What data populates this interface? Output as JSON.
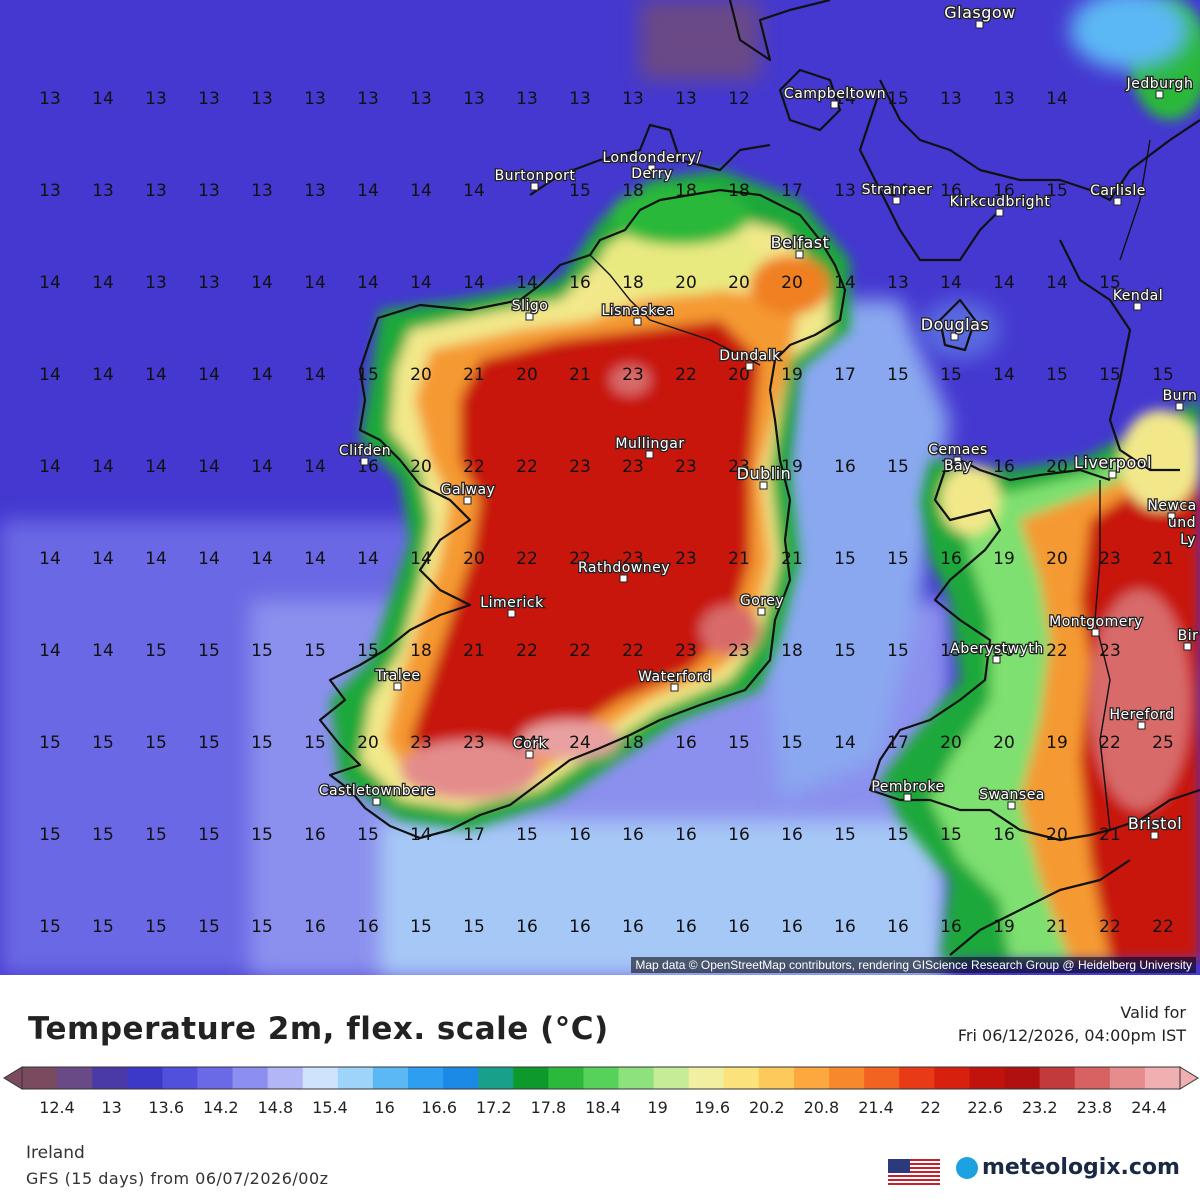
{
  "map": {
    "grid_rows": [
      {
        "values": [
          "13",
          "14",
          "13",
          "13",
          "13",
          "13",
          "13",
          "13",
          "13",
          "13",
          "13",
          "13",
          "13",
          "12",
          "",
          "14",
          "15",
          "13",
          "13",
          "14"
        ]
      },
      {
        "values": [
          "13",
          "13",
          "13",
          "13",
          "13",
          "13",
          "14",
          "14",
          "14",
          "",
          "15",
          "18",
          "18",
          "18",
          "17",
          "13",
          "14",
          "16",
          "16",
          "15"
        ]
      },
      {
        "values": [
          "14",
          "14",
          "13",
          "13",
          "14",
          "14",
          "14",
          "14",
          "14",
          "14",
          "16",
          "18",
          "20",
          "20",
          "20",
          "14",
          "13",
          "14",
          "14",
          "14",
          "15"
        ]
      },
      {
        "values": [
          "14",
          "14",
          "14",
          "14",
          "14",
          "14",
          "15",
          "20",
          "21",
          "20",
          "21",
          "23",
          "22",
          "20",
          "19",
          "17",
          "15",
          "15",
          "14",
          "15",
          "15",
          "15"
        ]
      },
      {
        "values": [
          "14",
          "14",
          "14",
          "14",
          "14",
          "14",
          "16",
          "20",
          "22",
          "22",
          "23",
          "23",
          "23",
          "23",
          "19",
          "16",
          "15",
          "17",
          "16",
          "20"
        ]
      },
      {
        "values": [
          "14",
          "14",
          "14",
          "14",
          "14",
          "14",
          "14",
          "14",
          "20",
          "22",
          "22",
          "23",
          "23",
          "21",
          "21",
          "15",
          "15",
          "16",
          "19",
          "20",
          "23",
          "21"
        ]
      },
      {
        "values": [
          "14",
          "14",
          "15",
          "15",
          "15",
          "15",
          "15",
          "18",
          "21",
          "22",
          "22",
          "22",
          "23",
          "23",
          "18",
          "15",
          "15",
          "15",
          "20",
          "22",
          "23"
        ]
      },
      {
        "values": [
          "15",
          "15",
          "15",
          "15",
          "15",
          "15",
          "20",
          "23",
          "23",
          "24",
          "24",
          "18",
          "16",
          "15",
          "15",
          "14",
          "17",
          "20",
          "20",
          "19",
          "22",
          "25"
        ]
      },
      {
        "values": [
          "15",
          "15",
          "15",
          "15",
          "15",
          "16",
          "15",
          "14",
          "17",
          "15",
          "16",
          "16",
          "16",
          "16",
          "16",
          "15",
          "15",
          "15",
          "16",
          "20",
          "21"
        ]
      },
      {
        "values": [
          "15",
          "15",
          "15",
          "15",
          "15",
          "16",
          "16",
          "15",
          "15",
          "16",
          "16",
          "16",
          "16",
          "16",
          "16",
          "16",
          "16",
          "16",
          "19",
          "21",
          "22",
          "22"
        ]
      }
    ],
    "cities": [
      {
        "name": "Glasgow"
      },
      {
        "name": "Campbeltown"
      },
      {
        "name": "Jedburgh"
      },
      {
        "name": "Londonderry/"
      },
      {
        "name": "Derry"
      },
      {
        "name": "Burtonport"
      },
      {
        "name": "Stranraer"
      },
      {
        "name": "Kirkcudbright"
      },
      {
        "name": "Carlisle"
      },
      {
        "name": "Belfast"
      },
      {
        "name": "Sligo"
      },
      {
        "name": "Lisnaskea"
      },
      {
        "name": "Kendal"
      },
      {
        "name": "Douglas"
      },
      {
        "name": "Dundalk"
      },
      {
        "name": "Burn"
      },
      {
        "name": "Mullingar"
      },
      {
        "name": "Clifden"
      },
      {
        "name": "Cemaes"
      },
      {
        "name": "Bay"
      },
      {
        "name": "Liverpool"
      },
      {
        "name": "Dublin"
      },
      {
        "name": "Galway"
      },
      {
        "name": "Newca"
      },
      {
        "name": "und"
      },
      {
        "name": "Ly"
      },
      {
        "name": "Rathdowney"
      },
      {
        "name": "Gorey"
      },
      {
        "name": "Limerick"
      },
      {
        "name": "Montgomery"
      },
      {
        "name": "Bir"
      },
      {
        "name": "Aberystwyth"
      },
      {
        "name": "Tralee"
      },
      {
        "name": "Waterford"
      },
      {
        "name": "Hereford"
      },
      {
        "name": "Cork"
      },
      {
        "name": "Pembroke"
      },
      {
        "name": "Castletownbere"
      },
      {
        "name": "Swansea"
      },
      {
        "name": "Bristol"
      }
    ],
    "attribution": "Map data © OpenStreetMap contributors, rendering GIScience Research Group @ Heidelberg University"
  },
  "legend": {
    "title": "Temperature 2m, flex. scale (°C)",
    "valid_label": "Valid for",
    "valid_time": "Fri 06/12/2026, 04:00pm IST",
    "tick_labels": [
      "12.4",
      "13",
      "13.6",
      "14.2",
      "14.8",
      "15.4",
      "16",
      "16.6",
      "17.2",
      "17.8",
      "18.4",
      "19",
      "19.6",
      "20.2",
      "20.8",
      "21.4",
      "22",
      "22.6",
      "23.2",
      "23.8",
      "24.4"
    ],
    "colors": [
      "#7a4a5e",
      "#6a4a86",
      "#4a3aa8",
      "#3c38c8",
      "#5050dc",
      "#6a6ae6",
      "#8c8ef0",
      "#b2b6f6",
      "#cfe4fc",
      "#9ed4fa",
      "#5cb8f4",
      "#2e9ef0",
      "#1a8ae6",
      "#18a08a",
      "#0e9a2a",
      "#2cb83a",
      "#56d25a",
      "#8ee27e",
      "#c6ec98",
      "#f2f0a0",
      "#fbe27a",
      "#fcc95a",
      "#fca83e",
      "#f8882c",
      "#f26220",
      "#e83a16",
      "#d8200e",
      "#c2120c",
      "#b01010",
      "#c23a3a",
      "#d86262",
      "#e68c8c",
      "#f0afb0"
    ]
  },
  "footer": {
    "region": "Ireland",
    "model": "GFS (15 days) from 06/07/2026/00z",
    "brand": "meteologix.com"
  }
}
